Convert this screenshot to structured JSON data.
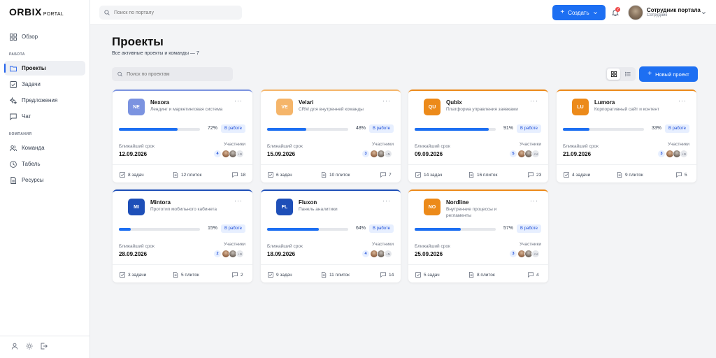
{
  "logo": {
    "main": "ORBIX",
    "sub": "PORTAL"
  },
  "sidebar": {
    "overview": "Обзор",
    "section_work": "РАБОТА",
    "items_work": [
      "Проекты",
      "Задачи",
      "Предложения",
      "Чат"
    ],
    "section_company": "КОМПАНИЯ",
    "items_company": [
      "Команда",
      "Табель",
      "Ресурсы"
    ],
    "active": "Проекты"
  },
  "topbar": {
    "search_placeholder": "Поиск по порталу",
    "create_label": "Создать",
    "notifications_count": "2",
    "user_name": "Сотрудник портала",
    "user_role": "Сотрудник"
  },
  "page": {
    "title": "Проекты",
    "subtitle": "Все активные проекты и команды — 7",
    "search_placeholder": "Поиск по проектам",
    "new_project_label": "Новый проект"
  },
  "labels": {
    "deadline": "Ближайший срок",
    "participants": "Участники",
    "more": "+N"
  },
  "colors": {
    "accent": "#1d6ff2"
  },
  "projects": [
    {
      "initials": "NE",
      "name": "Nexora",
      "desc": "Лендинг и маркетинговая система",
      "progress": 72,
      "pct": "72%",
      "status": "В работе",
      "deadline": "12.09.2026",
      "members": "4",
      "tasks": "8 задач",
      "tiles": "12 плиток",
      "comments": "18",
      "color": "#7b93e0",
      "top": "#7b93e0"
    },
    {
      "initials": "VE",
      "name": "Velari",
      "desc": "CRM для внутренней команды",
      "progress": 48,
      "pct": "48%",
      "status": "В работе",
      "deadline": "15.09.2026",
      "members": "3",
      "tasks": "6 задач",
      "tiles": "10 плиток",
      "comments": "7",
      "color": "#f5b56a",
      "top": "#f5b56a"
    },
    {
      "initials": "QU",
      "name": "Qubix",
      "desc": "Платформа управления заявками",
      "progress": 91,
      "pct": "91%",
      "status": "В работе",
      "deadline": "09.09.2026",
      "members": "5",
      "tasks": "14 задач",
      "tiles": "16 плиток",
      "comments": "23",
      "color": "#ec8a1a",
      "top": "#ec8a1a"
    },
    {
      "initials": "LU",
      "name": "Lumora",
      "desc": "Корпоративный сайт и контент",
      "progress": 33,
      "pct": "33%",
      "status": "В работе",
      "deadline": "21.09.2026",
      "members": "3",
      "tasks": "4 задачи",
      "tiles": "9 плиток",
      "comments": "5",
      "color": "#ec8a1a",
      "top": "#ec8a1a"
    },
    {
      "initials": "MI",
      "name": "Mintora",
      "desc": "Прототип мобильного кабинета",
      "progress": 15,
      "pct": "15%",
      "status": "В работе",
      "deadline": "28.09.2026",
      "members": "2",
      "tasks": "3 задачи",
      "tiles": "5 плиток",
      "comments": "2",
      "color": "#1e4fb8",
      "top": "#1e4fb8"
    },
    {
      "initials": "FL",
      "name": "Fluxon",
      "desc": "Панель аналитики",
      "progress": 64,
      "pct": "64%",
      "status": "В работе",
      "deadline": "18.09.2026",
      "members": "4",
      "tasks": "9 задач",
      "tiles": "11 плиток",
      "comments": "14",
      "color": "#1e4fb8",
      "top": "#1e4fb8"
    },
    {
      "initials": "NO",
      "name": "Nordline",
      "desc": "Внутренние процессы и регламенты",
      "progress": 57,
      "pct": "57%",
      "status": "В работе",
      "deadline": "25.09.2026",
      "members": "3",
      "tasks": "5 задач",
      "tiles": "8 плиток",
      "comments": "4",
      "color": "#ec8a1a",
      "top": "#ec8a1a"
    }
  ]
}
